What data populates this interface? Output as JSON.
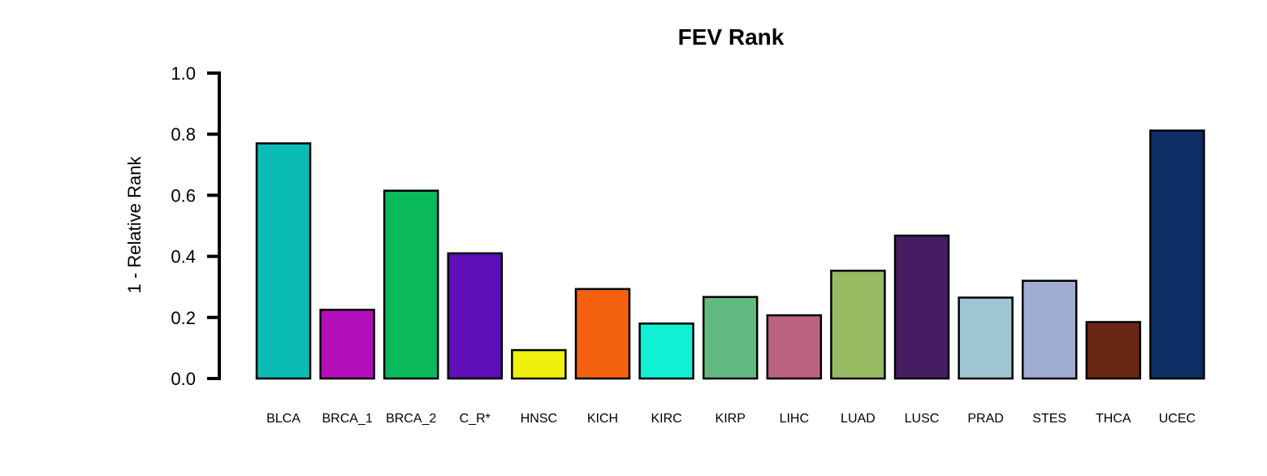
{
  "chart_data": {
    "type": "bar",
    "title": "FEV Rank",
    "xlabel": "",
    "ylabel": "1 - Relative Rank",
    "ylim": [
      0,
      1.0
    ],
    "yticks": [
      "0.0",
      "0.2",
      "0.4",
      "0.6",
      "0.8",
      "1.0"
    ],
    "grid": false,
    "legend": "none",
    "categories": [
      "BLCA",
      "BRCA_1",
      "BRCA_2",
      "C_R*",
      "HNSC",
      "KICH",
      "KIRC",
      "KIRP",
      "LIHC",
      "LUAD",
      "LUSC",
      "PRAD",
      "STES",
      "THCA",
      "UCEC"
    ],
    "values": [
      0.77,
      0.225,
      0.615,
      0.41,
      0.093,
      0.293,
      0.18,
      0.267,
      0.207,
      0.353,
      0.468,
      0.265,
      0.32,
      0.185,
      0.812
    ],
    "colors": [
      "#0BBCB5",
      "#B30EBA",
      "#0AB95A",
      "#5F0DB8",
      "#F0F00E",
      "#F26010",
      "#11F0D2",
      "#62BA80",
      "#BC617F",
      "#96BB62",
      "#461C62",
      "#A0C5D3",
      "#A0AED3",
      "#692613",
      "#0D2F66"
    ]
  }
}
